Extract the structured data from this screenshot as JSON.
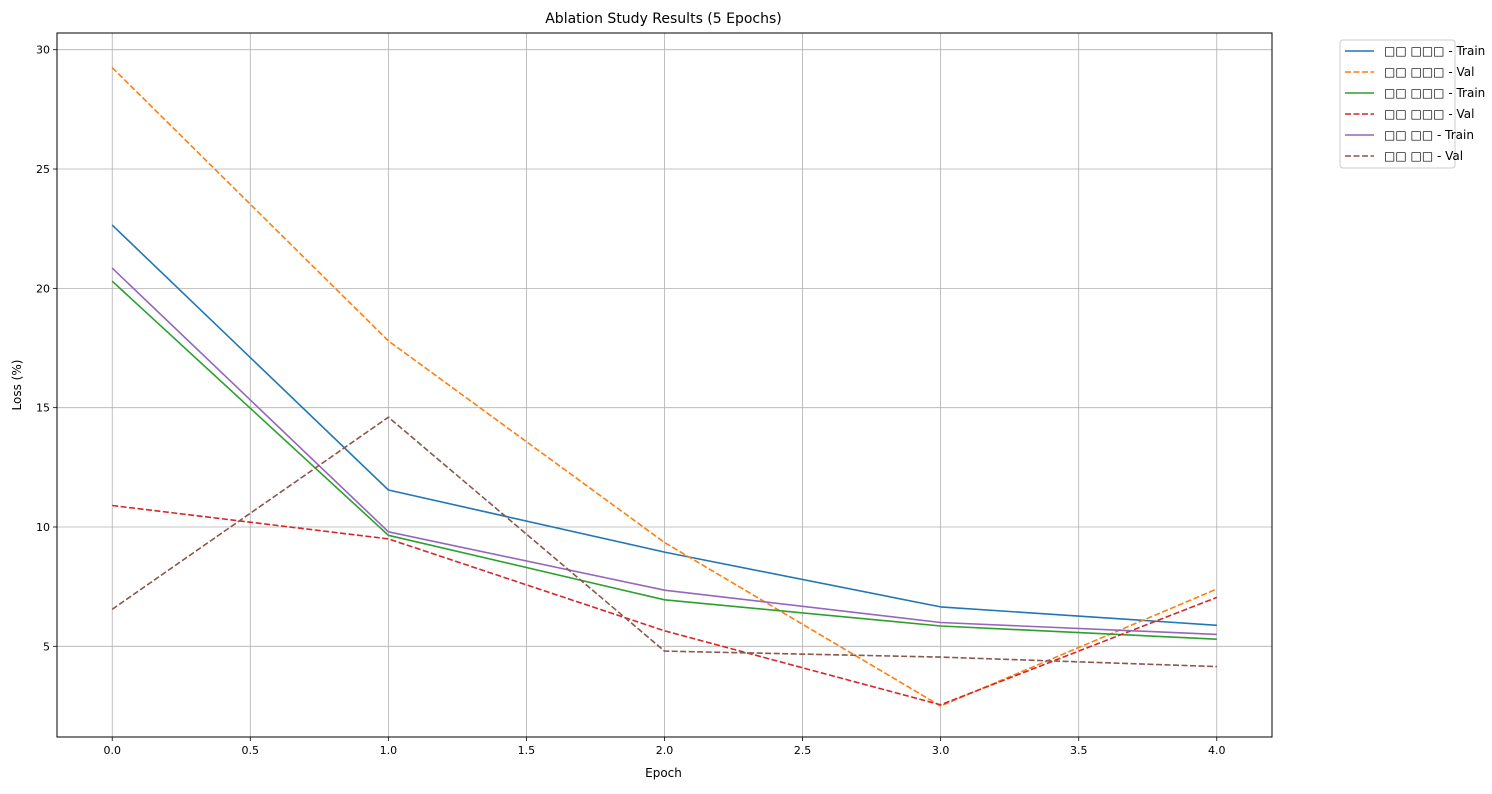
{
  "chart_data": {
    "type": "line",
    "title": "Ablation Study Results (5 Epochs)",
    "xlabel": "Epoch",
    "ylabel": "Loss (%)",
    "xlim": [
      -0.2,
      4.2
    ],
    "ylim": [
      1.2,
      30.7
    ],
    "xticks": [
      0.0,
      0.5,
      1.0,
      1.5,
      2.0,
      2.5,
      3.0,
      3.5,
      4.0
    ],
    "xtick_labels": [
      "0.0",
      "0.5",
      "1.0",
      "1.5",
      "2.0",
      "2.5",
      "3.0",
      "3.5",
      "4.0"
    ],
    "yticks": [
      5,
      10,
      15,
      20,
      25,
      30
    ],
    "ytick_labels": [
      "5",
      "10",
      "15",
      "20",
      "25",
      "30"
    ],
    "grid": true,
    "legend_position": "outside upper-right",
    "x": [
      0,
      1,
      2,
      3,
      4
    ],
    "series": [
      {
        "name": "□□ □□□ - Train",
        "values": [
          22.65,
          11.55,
          8.95,
          6.65,
          5.88
        ],
        "color": "#1f77b4",
        "dash": "solid"
      },
      {
        "name": "□□ □□□ - Val",
        "values": [
          29.25,
          17.8,
          9.35,
          2.5,
          7.4
        ],
        "color": "#ff7f0e",
        "dash": "dashed"
      },
      {
        "name": "□□ □□□ - Train",
        "values": [
          20.3,
          9.65,
          6.95,
          5.85,
          5.3
        ],
        "color": "#2ca02c",
        "dash": "solid"
      },
      {
        "name": "□□ □□□ - Val",
        "values": [
          10.9,
          9.5,
          5.65,
          2.55,
          7.05
        ],
        "color": "#d62728",
        "dash": "dashed"
      },
      {
        "name": "□□ □□ - Train",
        "values": [
          20.85,
          9.8,
          7.35,
          6.0,
          5.5
        ],
        "color": "#9467bd",
        "dash": "solid"
      },
      {
        "name": "□□ □□ - Val",
        "values": [
          6.55,
          14.6,
          4.8,
          4.55,
          4.15
        ],
        "color": "#8c564b",
        "dash": "dashed"
      }
    ]
  }
}
